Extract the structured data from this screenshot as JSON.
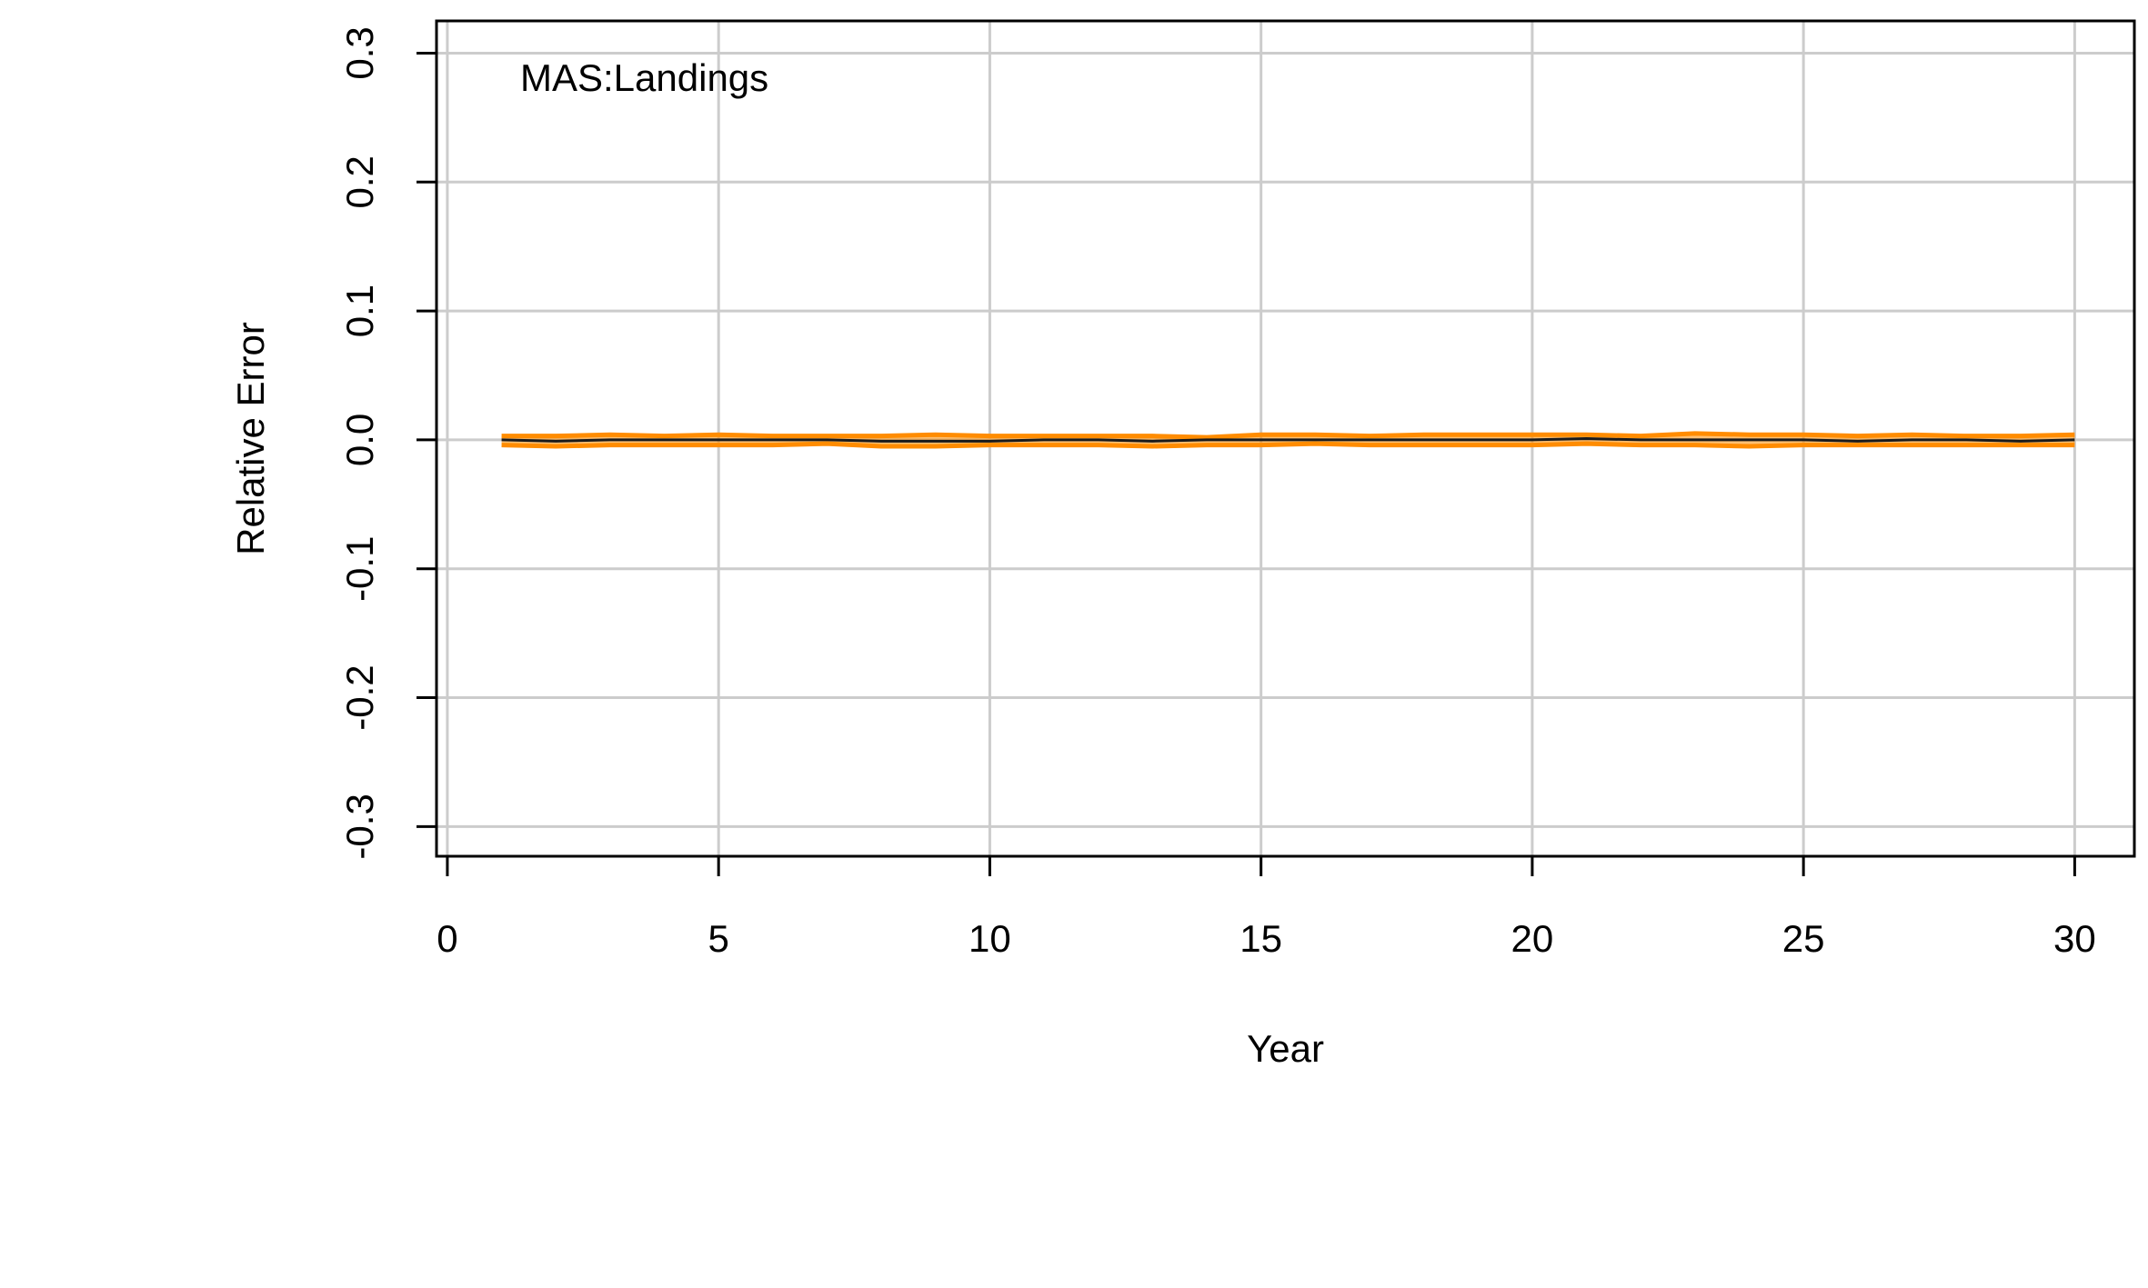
{
  "chart_data": {
    "type": "line",
    "annotation": "MAS:Landings",
    "xlabel": "Year",
    "ylabel": "Relative Error",
    "xlim": [
      -0.2,
      31.1
    ],
    "ylim": [
      -0.323,
      0.325
    ],
    "xticks": [
      0,
      5,
      10,
      15,
      20,
      25,
      30
    ],
    "xtick_labels": [
      "0",
      "5",
      "10",
      "15",
      "20",
      "25",
      "30"
    ],
    "yticks": [
      -0.3,
      -0.2,
      -0.1,
      0.0,
      0.1,
      0.2,
      0.3
    ],
    "ytick_labels": [
      "-0.3",
      "-0.2",
      "-0.1",
      "0.0",
      "0.1",
      "0.2",
      "0.3"
    ],
    "grid": true,
    "colors": {
      "band": "#FF8C00",
      "median": "#1a1a1a",
      "grid": "#cccccc",
      "axis": "#000000"
    },
    "x": [
      1,
      2,
      3,
      4,
      5,
      6,
      7,
      8,
      9,
      10,
      11,
      12,
      13,
      14,
      15,
      16,
      17,
      18,
      19,
      20,
      21,
      22,
      23,
      24,
      25,
      26,
      27,
      28,
      29,
      30
    ],
    "series": [
      {
        "role": "upper",
        "values": [
          0.003,
          0.003,
          0.004,
          0.003,
          0.004,
          0.003,
          0.003,
          0.003,
          0.004,
          0.003,
          0.003,
          0.003,
          0.003,
          0.002,
          0.004,
          0.004,
          0.003,
          0.004,
          0.004,
          0.004,
          0.004,
          0.003,
          0.005,
          0.004,
          0.004,
          0.003,
          0.004,
          0.003,
          0.003,
          0.004
        ]
      },
      {
        "role": "median",
        "values": [
          0.0,
          -0.001,
          0.0,
          0.0,
          0.0,
          0.0,
          0.0,
          -0.001,
          -0.001,
          -0.001,
          0.0,
          0.0,
          -0.001,
          0.0,
          0.0,
          0.0,
          0.0,
          0.0,
          0.0,
          0.0,
          0.001,
          0.0,
          0.0,
          0.0,
          0.0,
          -0.001,
          0.0,
          0.0,
          -0.001,
          0.0
        ]
      },
      {
        "role": "lower",
        "values": [
          -0.004,
          -0.005,
          -0.004,
          -0.004,
          -0.004,
          -0.004,
          -0.003,
          -0.005,
          -0.005,
          -0.004,
          -0.004,
          -0.004,
          -0.005,
          -0.004,
          -0.004,
          -0.003,
          -0.004,
          -0.004,
          -0.004,
          -0.004,
          -0.003,
          -0.004,
          -0.004,
          -0.005,
          -0.004,
          -0.004,
          -0.004,
          -0.004,
          -0.004,
          -0.004
        ]
      }
    ]
  }
}
